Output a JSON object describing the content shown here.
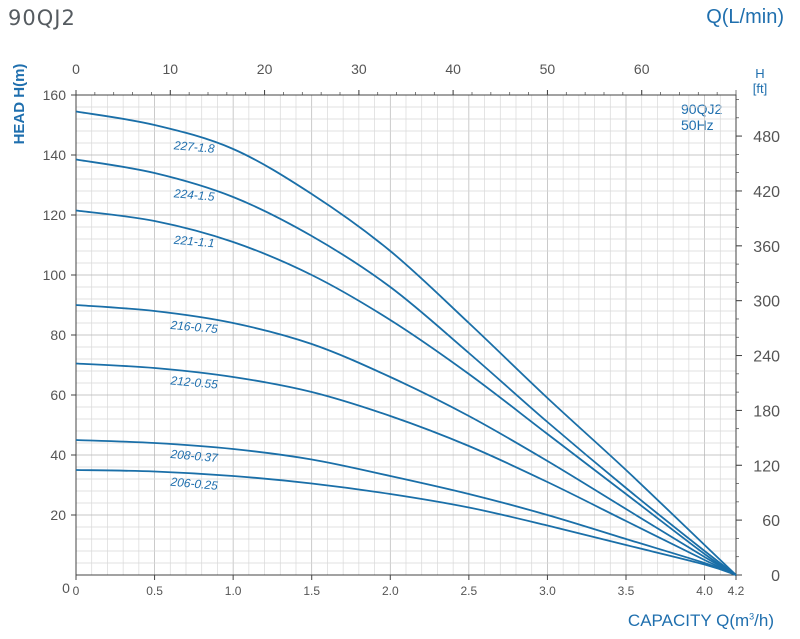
{
  "header": {
    "model": "90QJ2",
    "top_axis_label": "Q(L/min)"
  },
  "labels": {
    "y_left": "HEAD H(m)",
    "y_right_top": "H",
    "y_right_unit": "[ft]",
    "x_bottom_prefix": "CAPACITY Q(m",
    "x_bottom_sup": "3",
    "x_bottom_suffix": "/h)",
    "model_tag": "90QJ2",
    "freq_tag": "50Hz"
  },
  "colors": {
    "curve": "#1a6fa8",
    "text": "#1f6fae",
    "grid_minor": "#d8d8d8",
    "grid_major": "#b4b4b4",
    "axis": "#444444"
  },
  "chart_data": {
    "type": "line",
    "title": "90QJ2",
    "xlabel": "CAPACITY Q(m3/h)",
    "ylabel": "HEAD H(m)",
    "xlim": [
      0,
      4.2
    ],
    "ylim": [
      0,
      160
    ],
    "x_ticks": [
      "0",
      "0.5",
      "1.0",
      "1.5",
      "2.0",
      "2.5",
      "3.0",
      "3.5",
      "4.0",
      "4.2"
    ],
    "x_tick_values": [
      0,
      0.5,
      1.0,
      1.5,
      2.0,
      2.5,
      3.0,
      3.5,
      4.0,
      4.2
    ],
    "y_ticks": [
      "20",
      "40",
      "60",
      "80",
      "100",
      "120",
      "140",
      "160"
    ],
    "y_tick_values": [
      20,
      40,
      60,
      80,
      100,
      120,
      140,
      160
    ],
    "top_axis": {
      "label": "Q(L/min)",
      "ticks": [
        "0",
        "10",
        "20",
        "30",
        "40",
        "50",
        "60"
      ],
      "tick_values": [
        0,
        10,
        20,
        30,
        40,
        50,
        60
      ],
      "factor_from_m3h": 16.6667
    },
    "right_axis": {
      "label": "H [ft]",
      "ticks": [
        "0",
        "60",
        "120",
        "180",
        "240",
        "300",
        "360",
        "420",
        "480"
      ],
      "tick_values": [
        0,
        60,
        120,
        180,
        240,
        300,
        360,
        420,
        480
      ],
      "factor_from_m": 3.28084
    },
    "series": [
      {
        "name": "227-1.8",
        "x": [
          0,
          0.5,
          1.0,
          1.5,
          2.0,
          2.5,
          3.0,
          3.5,
          4.0,
          4.2
        ],
        "y": [
          154.5,
          150,
          142,
          127,
          108,
          84,
          59,
          35,
          10,
          0
        ]
      },
      {
        "name": "224-1.5",
        "x": [
          0,
          0.5,
          1.0,
          1.5,
          2.0,
          2.5,
          3.0,
          3.5,
          4.0,
          4.2
        ],
        "y": [
          138.5,
          134,
          126,
          113,
          96,
          74,
          51,
          29,
          8,
          0
        ]
      },
      {
        "name": "221-1.1",
        "x": [
          0,
          0.5,
          1.0,
          1.5,
          2.0,
          2.5,
          3.0,
          3.5,
          4.0,
          4.2
        ],
        "y": [
          121.5,
          118,
          111,
          100,
          85,
          67,
          47,
          27,
          7,
          0
        ]
      },
      {
        "name": "216-0.75",
        "x": [
          0,
          0.5,
          1.0,
          1.5,
          2.0,
          2.5,
          3.0,
          3.5,
          4.0,
          4.2
        ],
        "y": [
          90,
          88,
          84,
          77,
          66,
          53,
          38,
          22,
          6,
          0
        ]
      },
      {
        "name": "212-0.55",
        "x": [
          0,
          0.5,
          1.0,
          1.5,
          2.0,
          2.5,
          3.0,
          3.5,
          4.0,
          4.2
        ],
        "y": [
          70.5,
          69,
          66,
          61,
          53,
          43,
          31,
          18,
          5,
          0
        ]
      },
      {
        "name": "208-0.37",
        "x": [
          0,
          0.5,
          1.0,
          1.5,
          2.0,
          2.5,
          3.0,
          3.5,
          4.0,
          4.2
        ],
        "y": [
          45,
          44,
          42,
          38.5,
          33,
          27,
          20,
          12,
          4,
          0
        ]
      },
      {
        "name": "206-0.25",
        "x": [
          0,
          0.5,
          1.0,
          1.5,
          2.0,
          2.5,
          3.0,
          3.5,
          4.0,
          4.2
        ],
        "y": [
          35,
          34.5,
          33,
          30.5,
          27,
          22.5,
          16.5,
          10,
          3.5,
          0
        ]
      }
    ],
    "grid": true,
    "legend": "inline curve labels"
  }
}
